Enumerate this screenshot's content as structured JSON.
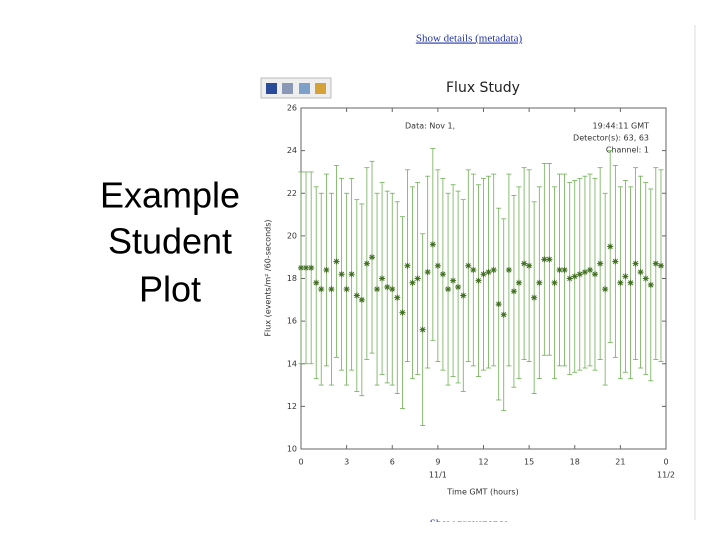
{
  "slide": {
    "title_lines": [
      "Example",
      "Student",
      "Plot"
    ]
  },
  "links": {
    "details": "Show details (metadata)",
    "provenance": "Show provenance"
  },
  "chart_data": {
    "type": "scatter",
    "title": "Flux Study",
    "annotations_left": [
      "Data: Nov 1,"
    ],
    "annotations_right": [
      "19:44:11 GMT",
      "Detector(s): 63, 63",
      "Channel: 1"
    ],
    "x_label": "Time GMT (hours)",
    "y_label": "Flux (events/m² /60-seconds)",
    "xlim": [
      0,
      24
    ],
    "ylim": [
      10,
      26
    ],
    "xticks": [
      0,
      3,
      6,
      9,
      12,
      15,
      18,
      21,
      {
        "value": 24,
        "label": "0"
      }
    ],
    "yticks": [
      10,
      12,
      14,
      16,
      18,
      20,
      22,
      24,
      26
    ],
    "date_labels": [
      {
        "value": 9,
        "label": "11/1"
      },
      {
        "value": 24,
        "label": "11/2"
      }
    ],
    "series": [
      {
        "color": "#3f6f1e",
        "error_color": "#6fae55",
        "x": [
          0,
          0.33,
          0.67,
          1,
          1.33,
          1.67,
          2,
          2.33,
          2.67,
          3,
          3.33,
          3.67,
          4,
          4.33,
          4.67,
          5,
          5.33,
          5.67,
          6,
          6.33,
          6.67,
          7,
          7.33,
          7.67,
          8,
          8.33,
          8.67,
          9,
          9.33,
          9.67,
          10,
          10.33,
          10.67,
          11,
          11.33,
          11.67,
          12,
          12.33,
          12.67,
          13,
          13.33,
          13.67,
          14,
          14.33,
          14.67,
          15,
          15.33,
          15.67,
          16,
          16.33,
          16.67,
          17,
          17.33,
          17.67,
          18,
          18.33,
          18.67,
          19,
          19.33,
          19.67,
          20,
          20.33,
          20.67,
          21,
          21.33,
          21.67,
          22,
          22.33,
          22.67,
          23,
          23.33,
          23.67
        ],
        "values": [
          18.5,
          18.5,
          18.5,
          17.8,
          17.5,
          18.4,
          17.5,
          18.8,
          18.2,
          17.5,
          18.2,
          17.2,
          17.0,
          18.7,
          19.0,
          17.5,
          18.0,
          17.6,
          17.5,
          17.1,
          16.4,
          18.6,
          17.8,
          18.0,
          15.6,
          18.3,
          19.6,
          18.6,
          18.2,
          17.5,
          17.9,
          17.6,
          17.2,
          18.6,
          18.4,
          17.9,
          18.2,
          18.3,
          18.4,
          16.8,
          16.3,
          18.4,
          17.4,
          17.8,
          18.7,
          18.6,
          17.1,
          17.8,
          18.9,
          18.9,
          17.8,
          18.4,
          18.4,
          18.0,
          18.1,
          18.2,
          18.3,
          18.4,
          18.2,
          18.7,
          17.5,
          19.5,
          18.8,
          17.8,
          18.1,
          17.8,
          18.7,
          18.3,
          18.0,
          17.7,
          18.7,
          18.6
        ],
        "errors": [
          4.5,
          4.5,
          4.5,
          4.5,
          4.5,
          4.5,
          4.5,
          4.5,
          4.5,
          4.5,
          4.5,
          4.5,
          4.5,
          4.5,
          4.5,
          4.5,
          4.5,
          4.5,
          4.5,
          4.5,
          4.5,
          4.5,
          4.5,
          4.5,
          4.5,
          4.5,
          4.5,
          4.5,
          4.5,
          4.5,
          4.5,
          4.5,
          4.5,
          4.5,
          4.5,
          4.5,
          4.5,
          4.5,
          4.5,
          4.5,
          4.5,
          4.5,
          4.5,
          4.5,
          4.5,
          4.5,
          4.5,
          4.5,
          4.5,
          4.5,
          4.5,
          4.5,
          4.5,
          4.5,
          4.5,
          4.5,
          4.5,
          4.5,
          4.5,
          4.5,
          4.5,
          4.5,
          4.5,
          4.5,
          4.5,
          4.5,
          4.5,
          4.5,
          4.5,
          4.5,
          4.5,
          4.5
        ]
      }
    ]
  }
}
